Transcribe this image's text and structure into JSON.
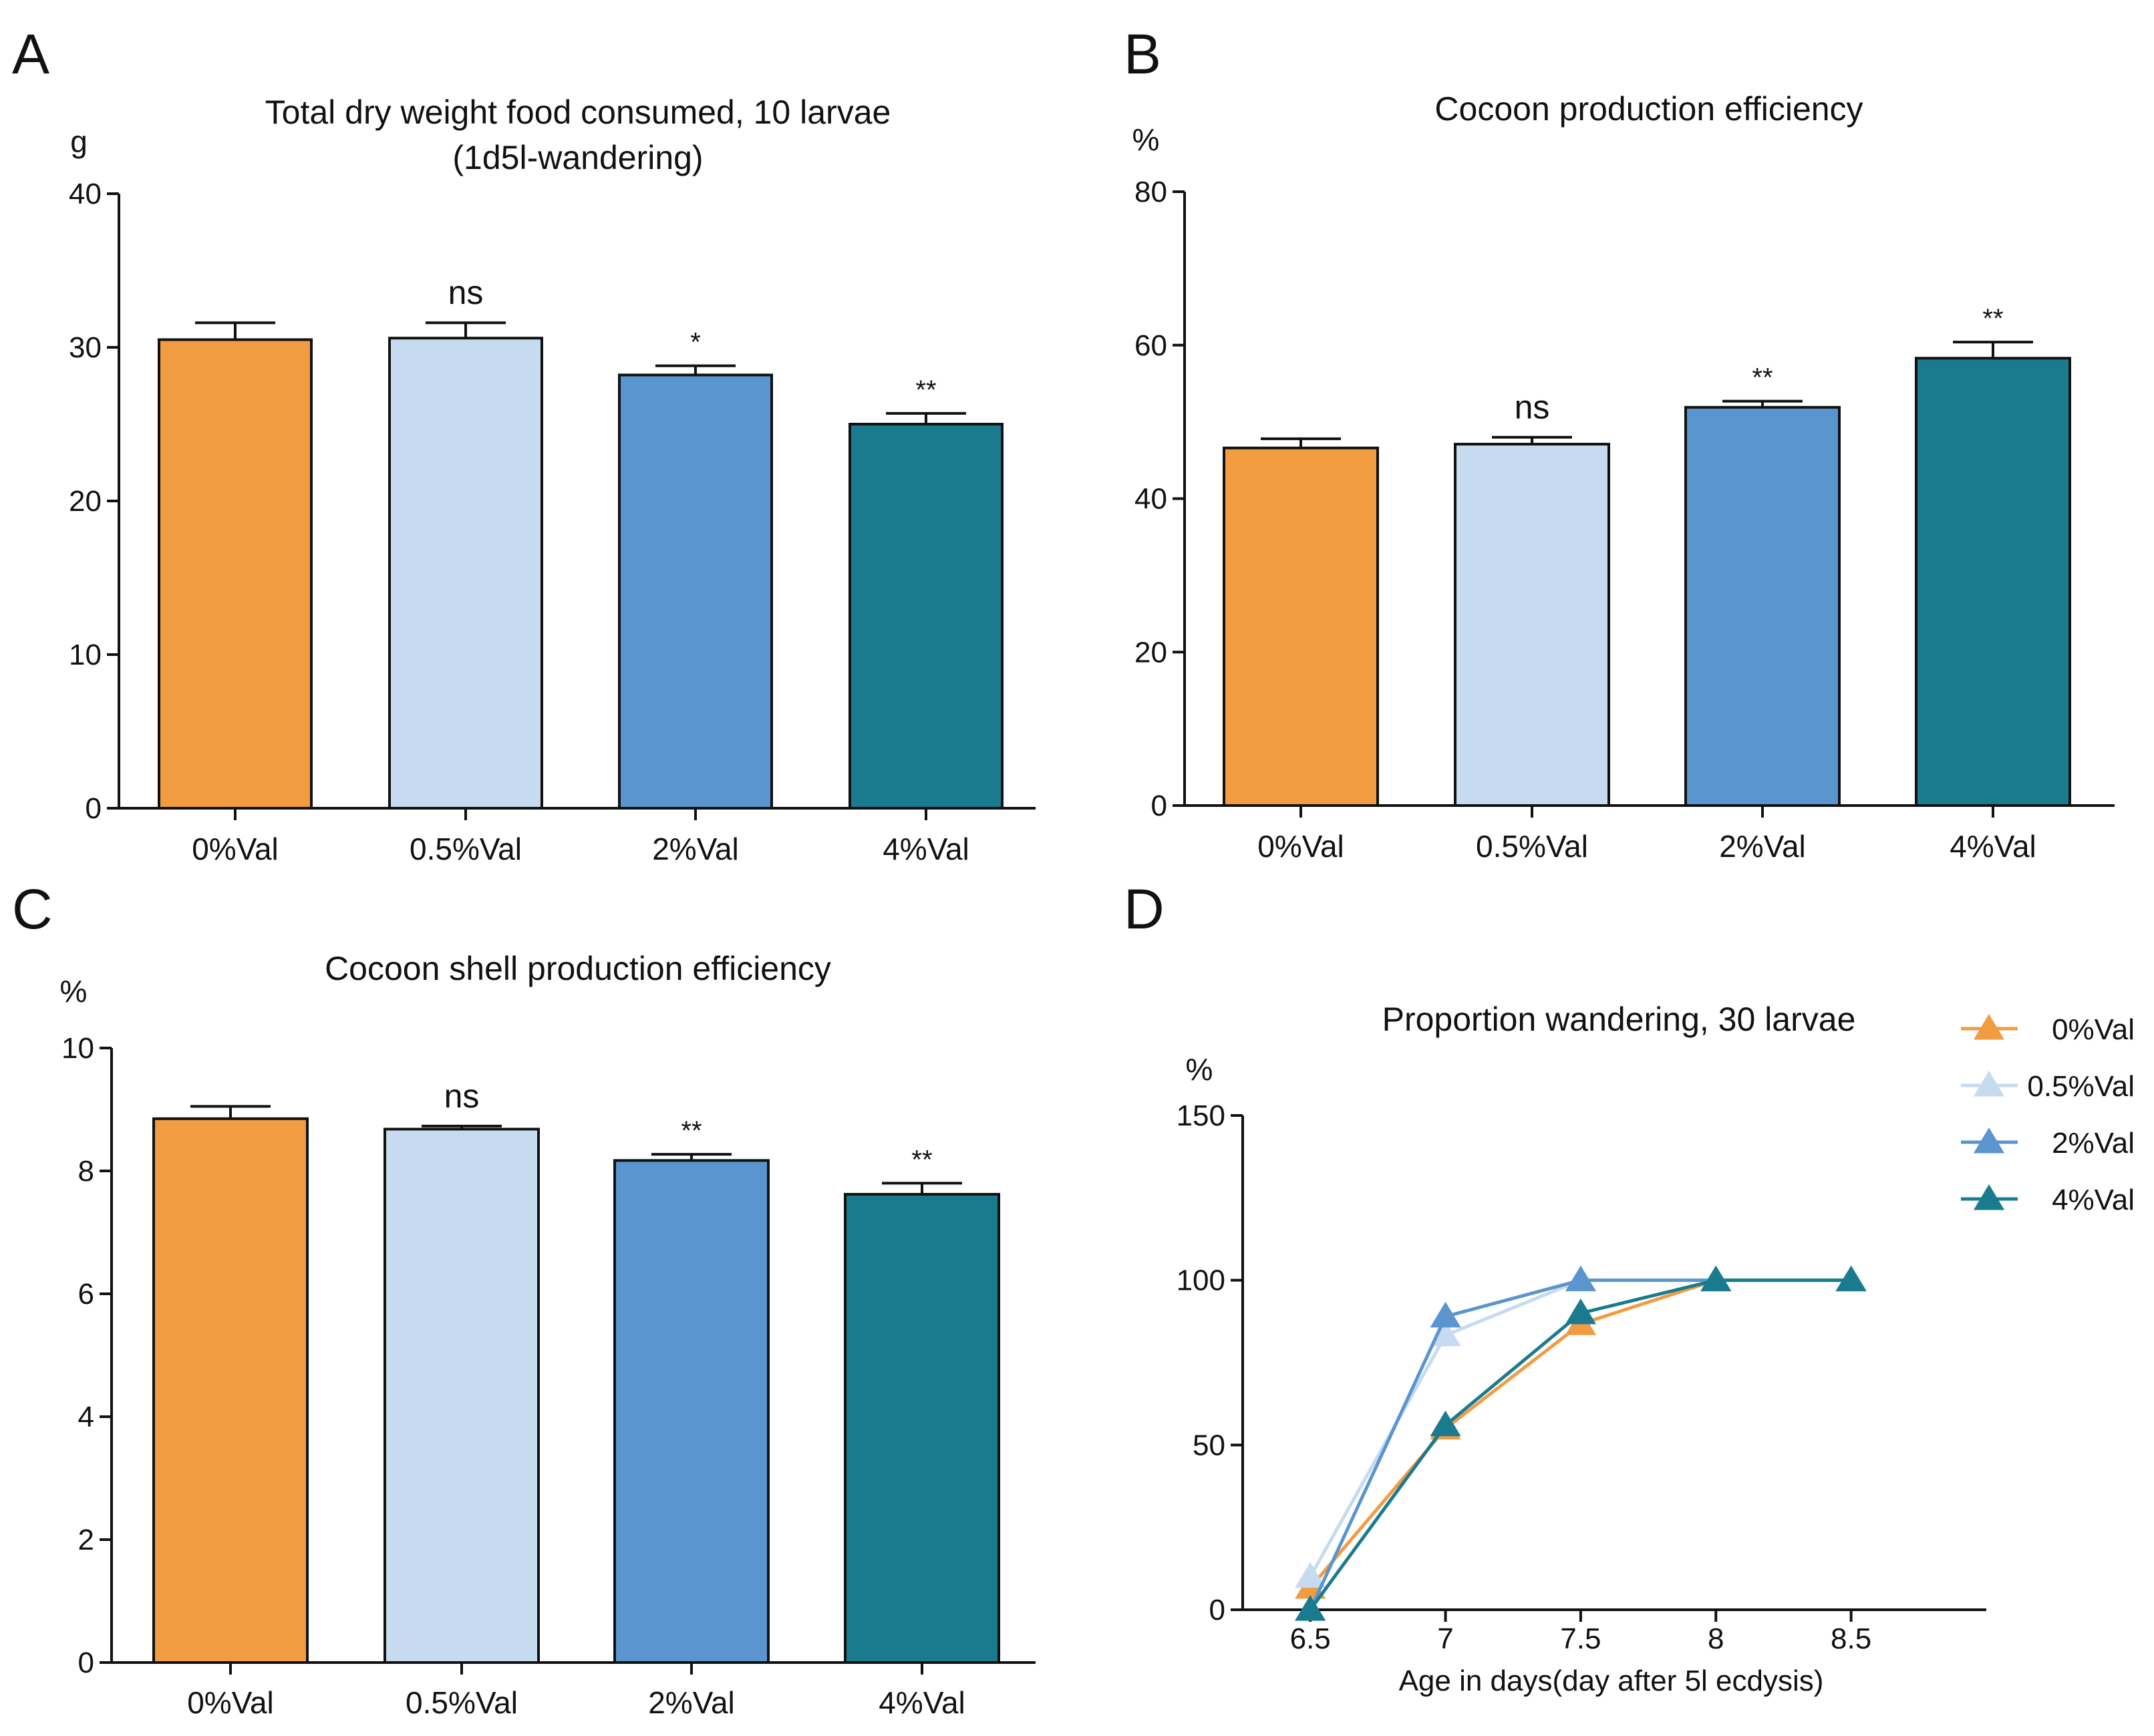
{
  "figure": {
    "panels": [
      "A",
      "B",
      "C",
      "D"
    ]
  },
  "chart_data": [
    {
      "panel": "A",
      "type": "bar",
      "title": [
        "Total dry weight food consumed, 10 larvae",
        "(1d5l-wandering)"
      ],
      "ylabel": "g",
      "ylim": [
        0,
        40
      ],
      "yticks": [
        0,
        10,
        20,
        30,
        40
      ],
      "categories": [
        "0%Val",
        "0.5%Val",
        "2%Val",
        "4%Val"
      ],
      "values": [
        30.5,
        30.6,
        28.2,
        25.0
      ],
      "errors": [
        1.1,
        1.0,
        0.6,
        0.7
      ],
      "significance": [
        "",
        "ns",
        "*",
        "**"
      ],
      "colors": [
        "#F29C42",
        "#C6DAF0",
        "#5A95CF",
        "#1A7B8F"
      ]
    },
    {
      "panel": "B",
      "type": "bar",
      "title": [
        "Cocoon production efficiency"
      ],
      "ylabel": "%",
      "ylim": [
        0,
        80
      ],
      "yticks": [
        0,
        20,
        40,
        60,
        80
      ],
      "categories": [
        "0%Val",
        "0.5%Val",
        "2%Val",
        "4%Val"
      ],
      "values": [
        46.6,
        47.1,
        51.9,
        58.3
      ],
      "errors": [
        1.2,
        0.9,
        0.8,
        2.1
      ],
      "significance": [
        "",
        "ns",
        "**",
        "**"
      ],
      "colors": [
        "#F29C42",
        "#C6DAF0",
        "#5A95CF",
        "#1A7B8F"
      ]
    },
    {
      "panel": "C",
      "type": "bar",
      "title": [
        "Cocoon shell production efficiency"
      ],
      "ylabel": "%",
      "ylim": [
        0,
        10
      ],
      "yticks": [
        0,
        2,
        4,
        6,
        8,
        10
      ],
      "categories": [
        "0%Val",
        "0.5%Val",
        "2%Val",
        "4%Val"
      ],
      "values": [
        8.85,
        8.68,
        8.17,
        7.62
      ],
      "errors": [
        0.2,
        0.05,
        0.1,
        0.18
      ],
      "significance": [
        "",
        "ns",
        "**",
        "**"
      ],
      "colors": [
        "#F29C42",
        "#C6DAF0",
        "#5A95CF",
        "#1A7B8F"
      ]
    },
    {
      "panel": "D",
      "type": "line",
      "title": [
        "Proportion wandering, 30 larvae"
      ],
      "ylabel": "%",
      "xlabel": "Age in days(day after 5l ecdysis)",
      "ylim": [
        0,
        150
      ],
      "yticks": [
        0,
        50,
        100,
        150
      ],
      "xlim": [
        6.25,
        9.0
      ],
      "x": [
        6.5,
        7,
        7.5,
        8,
        8.5
      ],
      "xtick_labels": [
        "6.5",
        "7",
        "7.5",
        "8",
        "8.5"
      ],
      "legend_position": "top-right",
      "series": [
        {
          "name": "0%Val",
          "color": "#F29C42",
          "values": [
            6.7,
            55,
            86.7,
            100,
            100
          ]
        },
        {
          "name": "0.5%Val",
          "color": "#C6DAF0",
          "values": [
            10,
            83.3,
            100,
            100,
            100
          ]
        },
        {
          "name": "2%Val",
          "color": "#5A95CF",
          "values": [
            0,
            89,
            100,
            100,
            100
          ]
        },
        {
          "name": "4%Val",
          "color": "#1A7B8F",
          "values": [
            0,
            56,
            90,
            100,
            100
          ]
        }
      ]
    }
  ]
}
